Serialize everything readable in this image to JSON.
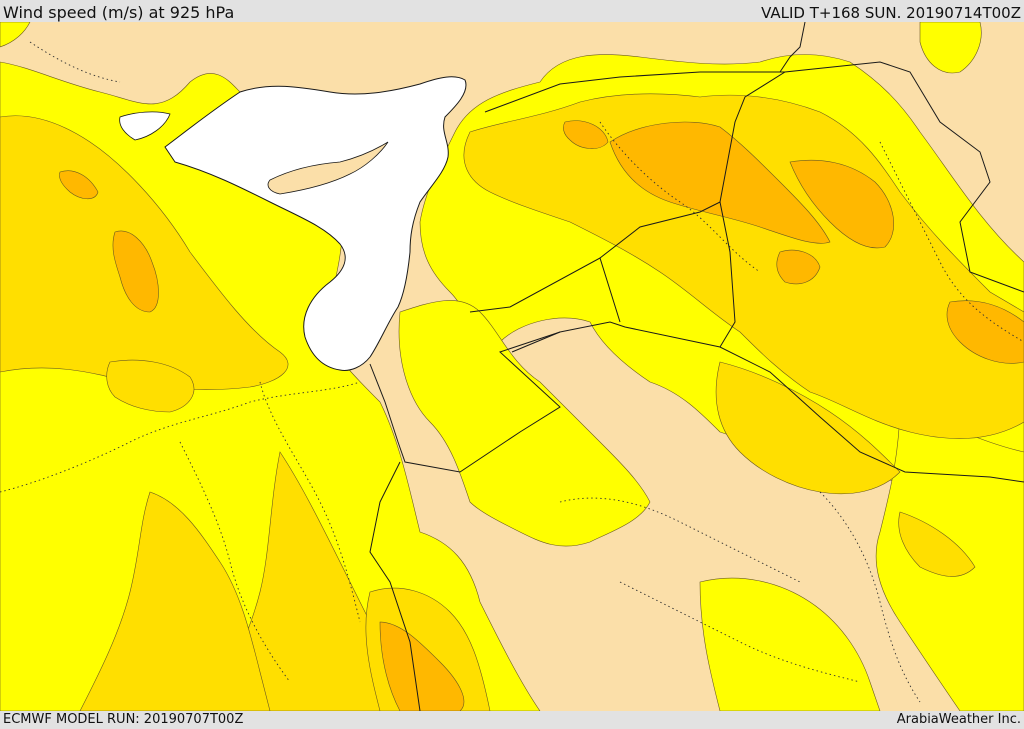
{
  "header": {
    "title": "Wind speed (m/s) at 925 hPa",
    "valid": "VALID T+168 SUN. 20190714T00Z"
  },
  "footer": {
    "model_run": "ECMWF MODEL RUN: 20190707T00Z",
    "brand": "ArabiaWeather Inc."
  },
  "colors": {
    "sea": "#ffffff",
    "calm": "#fbdfa9",
    "band1": "#ffff00",
    "band2": "#ffdf00",
    "band3": "#ffb800",
    "frame": "#e2e2e2",
    "border": "#1a1a1a"
  }
}
